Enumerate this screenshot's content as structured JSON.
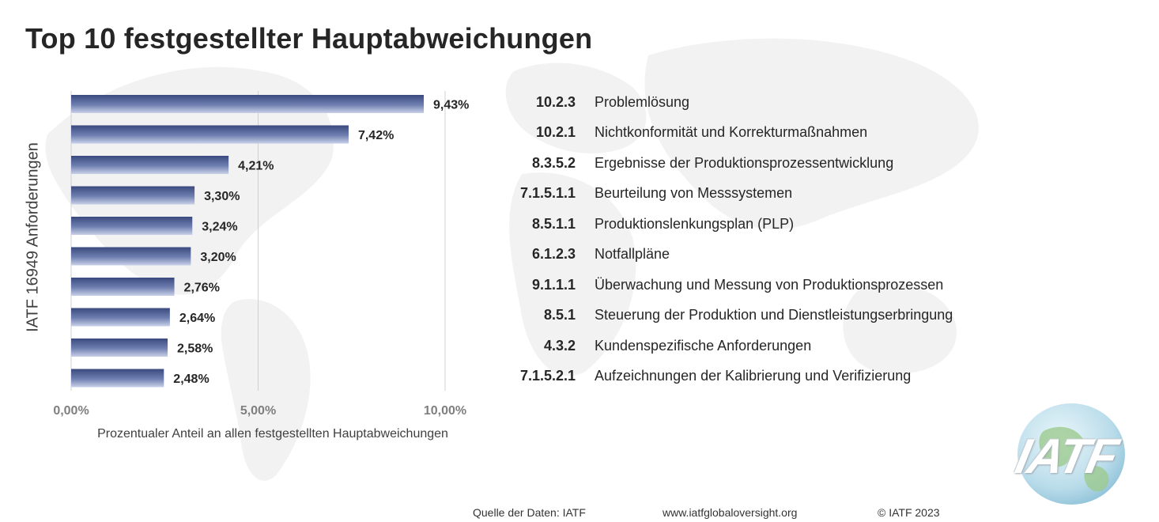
{
  "title": "Top 10 festgestellter Hauptabweichungen",
  "chart_data": {
    "type": "bar",
    "orientation": "horizontal",
    "categories": [
      "10.2.3",
      "10.2.1",
      "8.3.5.2",
      "7.1.5.1.1",
      "8.5.1.1",
      "6.1.2.3",
      "9.1.1.1",
      "8.5.1",
      "4.3.2",
      "7.1.5.2.1"
    ],
    "values": [
      9.43,
      7.42,
      4.21,
      3.3,
      3.24,
      3.2,
      2.76,
      2.64,
      2.58,
      2.48
    ],
    "value_labels": [
      "9,43%",
      "7,42%",
      "4,21%",
      "3,30%",
      "3,24%",
      "3,20%",
      "2,76%",
      "2,64%",
      "2,58%",
      "2,48%"
    ],
    "xlabel": "Prozentualer Anteil an allen festgestellten Hauptabweichungen",
    "ylabel": "IATF 16949 Anforderungen",
    "xlim": [
      0,
      10
    ],
    "xticks": [
      0,
      5,
      10
    ],
    "xtick_labels": [
      "0,00%",
      "5,00%",
      "10,00%"
    ],
    "grid": true,
    "bar_color": "#4a5a8c"
  },
  "requirements": [
    {
      "code": "10.2.3",
      "text": "Problemlösung"
    },
    {
      "code": "10.2.1",
      "text": "Nichtkonformität und Korrekturmaßnahmen"
    },
    {
      "code": "8.3.5.2",
      "text": "Ergebnisse der Produktionsprozessentwicklung"
    },
    {
      "code": "7.1.5.1.1",
      "text": "Beurteilung von Messsystemen"
    },
    {
      "code": "8.5.1.1",
      "text": "Produktionslenkungsplan (PLP)"
    },
    {
      "code": "6.1.2.3",
      "text": "Notfallpläne"
    },
    {
      "code": "9.1.1.1",
      "text": "Überwachung und Messung von Produktionsprozessen"
    },
    {
      "code": "8.5.1",
      "text": "Steuerung der Produktion und Dienstleistungserbringung"
    },
    {
      "code": "4.3.2",
      "text": "Kundenspezifische Anforderungen"
    },
    {
      "code": "7.1.5.2.1",
      "text": "Aufzeichnungen der Kalibrierung und Verifizierung"
    }
  ],
  "footer": {
    "source": "Quelle der Daten: IATF",
    "url": "www.iatfglobaloversight.org",
    "copyright": "© IATF 2023"
  },
  "logo": {
    "text": "IATF",
    "icon": "iatf-globe-logo"
  }
}
